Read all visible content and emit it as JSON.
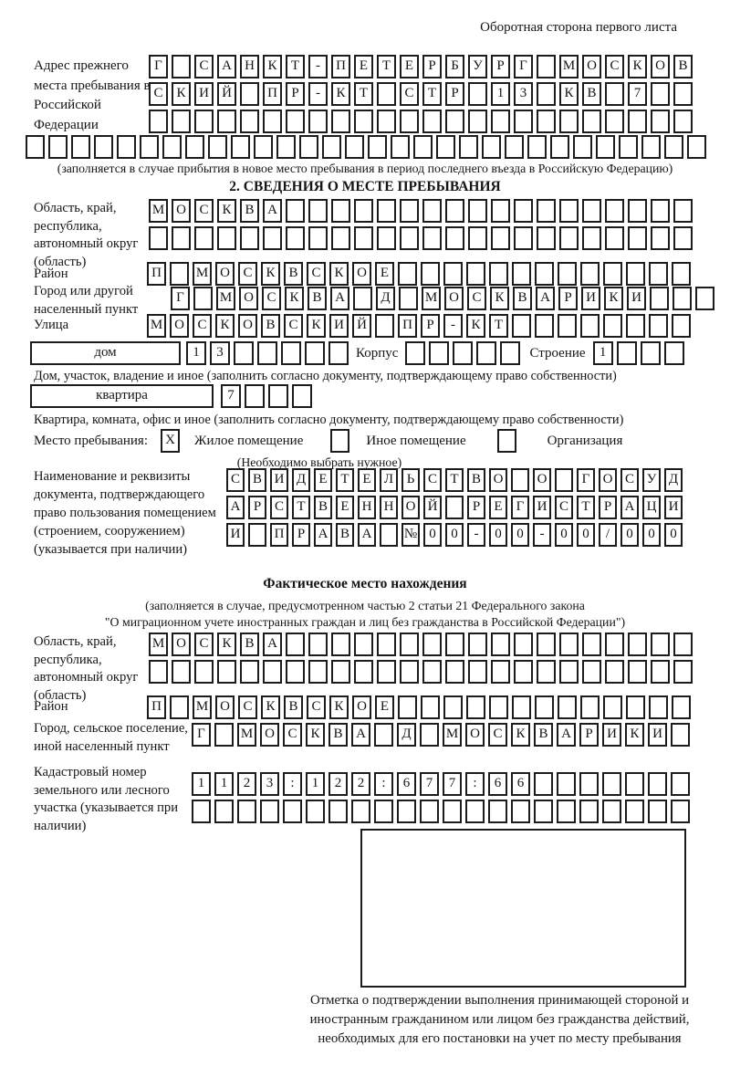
{
  "page": {
    "header_note": "Оборотная сторона первого листа"
  },
  "prev_address": {
    "label": "Адрес прежнего места пребывания в Российской Федерации",
    "rows": [
      {
        "text": "Г САНКТ-ПЕТЕРБУРГ МОСКОВ",
        "count": 24
      },
      {
        "text": "СКИЙ ПР-КТ СТР 13 КВ 7",
        "count": 24
      },
      {
        "text": "",
        "count": 24
      },
      {
        "text": "",
        "count": 30
      }
    ],
    "note": "(заполняется в случае прибытия в новое место пребывания в период последнего въезда в Российскую Федерацию)"
  },
  "section2": {
    "title": "2. СВЕДЕНИЯ О МЕСТЕ ПРЕБЫВАНИЯ",
    "oblast": {
      "label": "Область, край, республика, автономный округ (область)",
      "rows": [
        {
          "text": "МОСКВА",
          "count": 24
        },
        {
          "text": "",
          "count": 24
        }
      ]
    },
    "raion": {
      "label": "Район",
      "row": {
        "text": "П МОСКВСКОЕ",
        "count": 24
      }
    },
    "gorod": {
      "label": "Город или другой населенный пункт",
      "row": {
        "text": "Г МОСКВА Д МОСКВАРИКИ",
        "count": 24
      }
    },
    "ulitsa": {
      "label": "Улица",
      "row": {
        "text": "МОСКОВСКИЙ ПР-КТ",
        "count": 24
      }
    },
    "dom": {
      "box_label": "дом",
      "number": {
        "text": "13",
        "count": 7
      },
      "korpus_label": "Корпус",
      "korpus": {
        "text": "",
        "count": 5
      },
      "stroenie_label": "Строение",
      "stroenie": {
        "text": "1",
        "count": 4
      },
      "caption": "Дом, участок, владение и иное (заполнить согласно документу, подтверждающему право собственности)"
    },
    "kvartira": {
      "box_label": "квартира",
      "number": {
        "text": "7",
        "count": 4
      },
      "caption": "Квартира, комната, офис и иное (заполнить согласно документу, подтверждающему право собственности)"
    },
    "mesto": {
      "label": "Место пребывания:",
      "options": [
        {
          "mark": "X",
          "label": "Жилое помещение"
        },
        {
          "mark": "",
          "label": "Иное помещение"
        },
        {
          "mark": "",
          "label": "Организация"
        }
      ],
      "note": "(Необходимо выбрать нужное)"
    },
    "doc": {
      "label": "Наименование и реквизиты документа, подтверждающего право пользования помещением (строением, сооружением) (указывается при наличии)",
      "rows": [
        {
          "text": "СВИДЕТЕЛЬСТВО О ГОСУД",
          "count": 21
        },
        {
          "text": "АРСТВЕННОЙ РЕГИСТРАЦИ",
          "count": 21
        },
        {
          "text": "И ПРАВА №00-00-00/000",
          "count": 21
        }
      ]
    }
  },
  "fact": {
    "title": "Фактическое место нахождения",
    "note_lines": [
      "(заполняется в случае, предусмотренном частью 2 статьи 21 Федерального закона",
      "\"О миграционном учете иностранных граждан и лиц без гражданства в Российской Федерации\")"
    ],
    "oblast": {
      "label": "Область, край, республика, автономный округ (область)",
      "rows": [
        {
          "text": "МОСКВА",
          "count": 24
        },
        {
          "text": "",
          "count": 24
        }
      ]
    },
    "raion": {
      "label": "Район",
      "row": {
        "text": "П МОСКВСКОЕ",
        "count": 24
      }
    },
    "gorod": {
      "label": "Город, сельское поселение, иной населенный пункт",
      "row": {
        "text": "Г МОСКВА Д МОСКВАРИКИ",
        "count": 22
      }
    },
    "kadastr": {
      "label": "Кадастровый номер земельного или лесного участка (указывается при наличии)",
      "rows": [
        {
          "text": "1123:122:677:66",
          "count": 22
        },
        {
          "text": "",
          "count": 22
        }
      ]
    },
    "stamp_caption": "Отметка о подтверждении выполнения принимающей стороной и иностранным гражданином или лицом без гражданства действий, необходимых для его постановки на учет по месту пребывания"
  }
}
